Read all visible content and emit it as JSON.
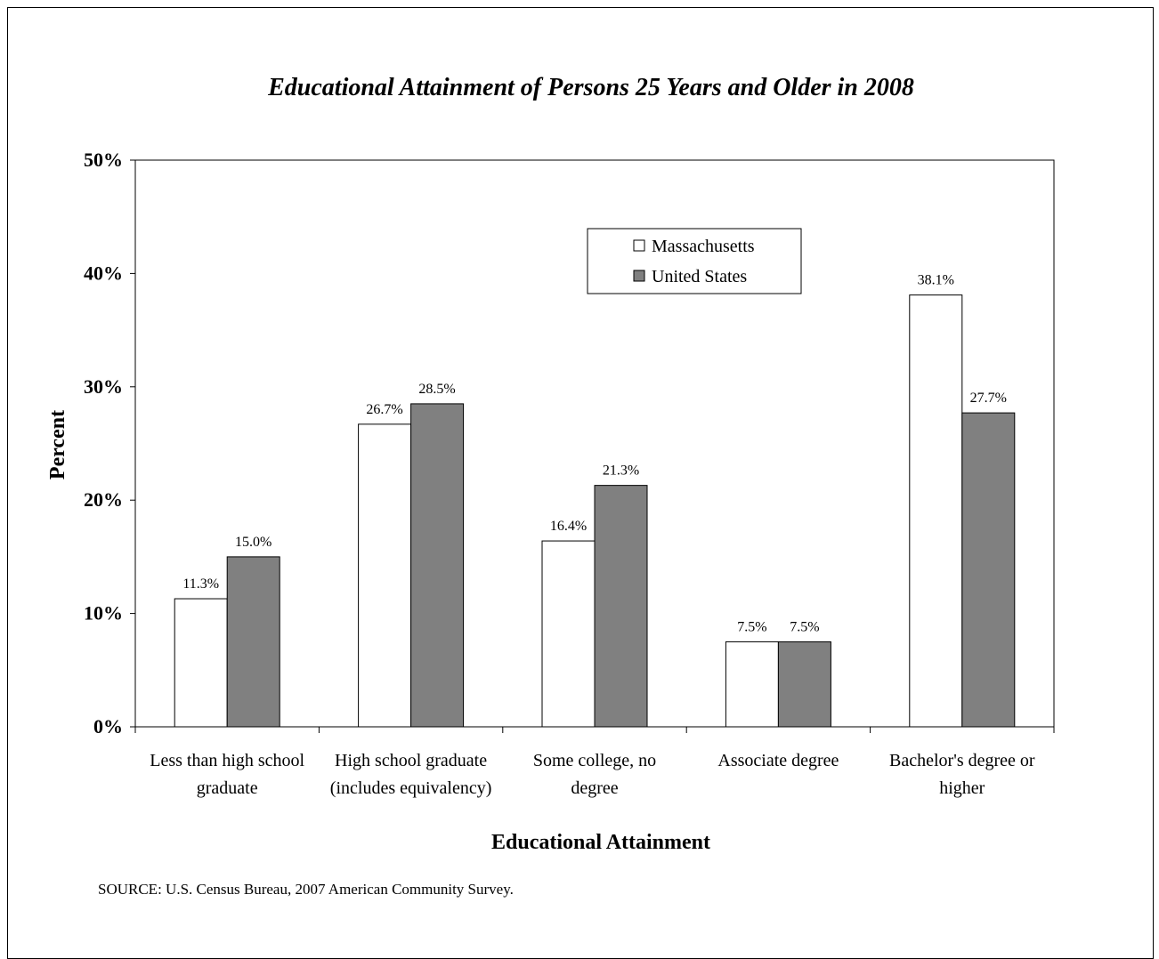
{
  "chart_data": {
    "type": "bar",
    "title": "Educational Attainment of Persons 25 Years and Older in 2008",
    "xlabel": "Educational Attainment",
    "ylabel": "Percent",
    "ylim": [
      0,
      50
    ],
    "yticks": [
      "0%",
      "10%",
      "20%",
      "30%",
      "40%",
      "50%"
    ],
    "categories": [
      [
        "Less than high school",
        "graduate"
      ],
      [
        "High school graduate",
        "(includes equivalency)"
      ],
      [
        "Some college, no",
        "degree"
      ],
      [
        "Associate degree"
      ],
      [
        "Bachelor's degree or",
        "higher"
      ]
    ],
    "series": [
      {
        "name": "Massachusetts",
        "values": [
          11.3,
          26.7,
          16.4,
          7.5,
          38.1
        ],
        "labels": [
          "11.3%",
          "26.7%",
          "16.4%",
          "7.5%",
          "38.1%"
        ],
        "color": "#ffffff"
      },
      {
        "name": "United States",
        "values": [
          15.0,
          28.5,
          21.3,
          7.5,
          27.7
        ],
        "labels": [
          "15.0%",
          "28.5%",
          "21.3%",
          "7.5%",
          "27.7%"
        ],
        "color": "#808080"
      }
    ],
    "legend": "top-center",
    "grid": false
  },
  "source": "SOURCE: U.S. Census Bureau, 2007 American Community Survey."
}
